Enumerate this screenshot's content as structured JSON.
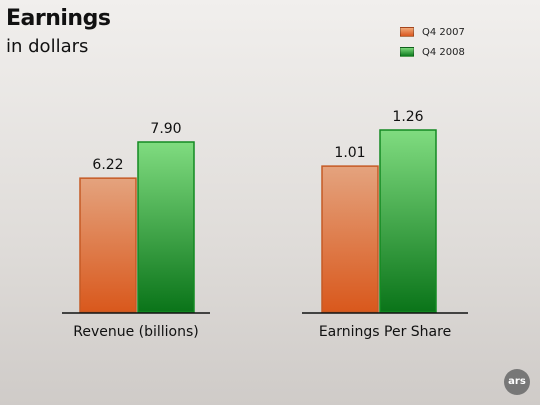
{
  "chart_data": {
    "type": "bar",
    "title": "Earnings",
    "subtitle": "in dollars",
    "categories": [
      "Revenue (billions)",
      "Earnings Per Share"
    ],
    "series": [
      {
        "name": "Q4 2007",
        "values": [
          6.22,
          1.01
        ],
        "color": "#e87a3a",
        "labels": [
          "6.22",
          "1.01"
        ]
      },
      {
        "name": "Q4 2008",
        "values": [
          7.9,
          1.26
        ],
        "color": "#3fae3f",
        "labels": [
          "7.90",
          "1.26"
        ]
      }
    ],
    "grid": false,
    "legend": "top-right"
  },
  "logo": {
    "text": "ars"
  }
}
